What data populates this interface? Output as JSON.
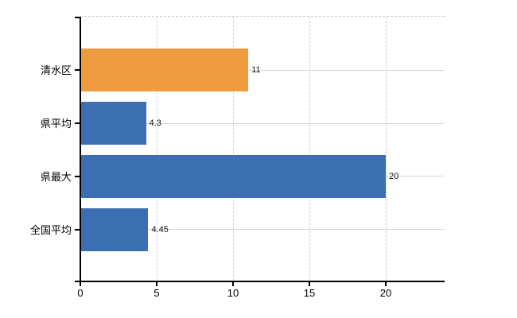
{
  "chart_data": {
    "type": "bar",
    "orientation": "horizontal",
    "title": "",
    "xlabel": "",
    "ylabel": "",
    "categories": [
      "清水区",
      "県平均",
      "県最大",
      "全国平均"
    ],
    "values": [
      11,
      4.3,
      20,
      4.45
    ],
    "value_labels": [
      "11",
      "4.3",
      "20",
      "4.45"
    ],
    "bar_colors": [
      "#ef9b40",
      "#3c6fb1",
      "#3c6fb1",
      "#3c6fb1"
    ],
    "xlim": [
      0,
      23.85
    ],
    "xticks": [
      0,
      5,
      10,
      15,
      20
    ],
    "xtick_labels": [
      "0",
      "5",
      "10",
      "15",
      "20"
    ],
    "grid": true,
    "legend_position": "none"
  },
  "colors": {
    "orange_bar": "#ef9b40",
    "blue_bar": "#3c6fb1",
    "gridline": "#d6d6d6",
    "axis": "#000000",
    "text": "#000000",
    "background": "#ffffff"
  }
}
